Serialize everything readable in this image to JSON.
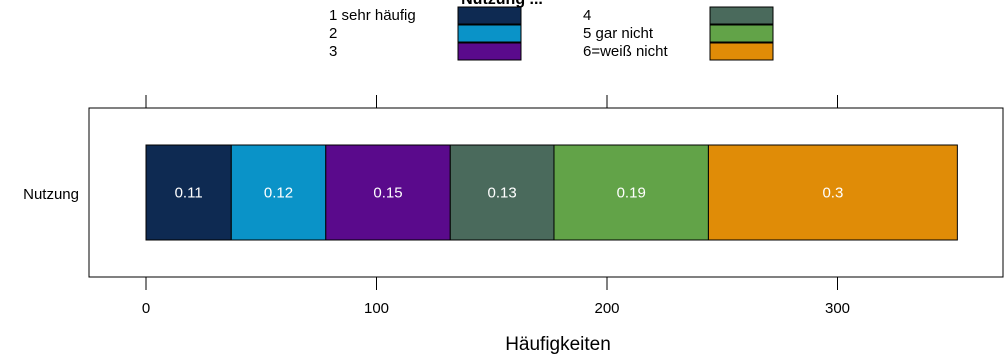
{
  "chart_data": {
    "type": "bar",
    "orientation": "horizontal",
    "stacked": true,
    "title": "Nutzung ...",
    "xlabel": "Häufigkeiten",
    "ylabel": "",
    "categories": [
      "Nutzung"
    ],
    "xlim": [
      -25,
      372
    ],
    "xticks": [
      0,
      100,
      200,
      300
    ],
    "grid": false,
    "legend_position": "top",
    "series": [
      {
        "name": "1 sehr häufig",
        "color": "#0e2a52",
        "value": 37,
        "label": "0.11"
      },
      {
        "name": "2",
        "color": "#0a93c8",
        "value": 41,
        "label": "0.12"
      },
      {
        "name": "3",
        "color": "#5a0a8c",
        "value": 54,
        "label": "0.15"
      },
      {
        "name": "4",
        "color": "#4a6a5c",
        "value": 45,
        "label": "0.13"
      },
      {
        "name": "5 gar nicht",
        "color": "#62a348",
        "value": 67,
        "label": "0.19"
      },
      {
        "name": "6=weiß nicht",
        "color": "#e08c07",
        "value": 108,
        "label": "0.3"
      }
    ]
  }
}
